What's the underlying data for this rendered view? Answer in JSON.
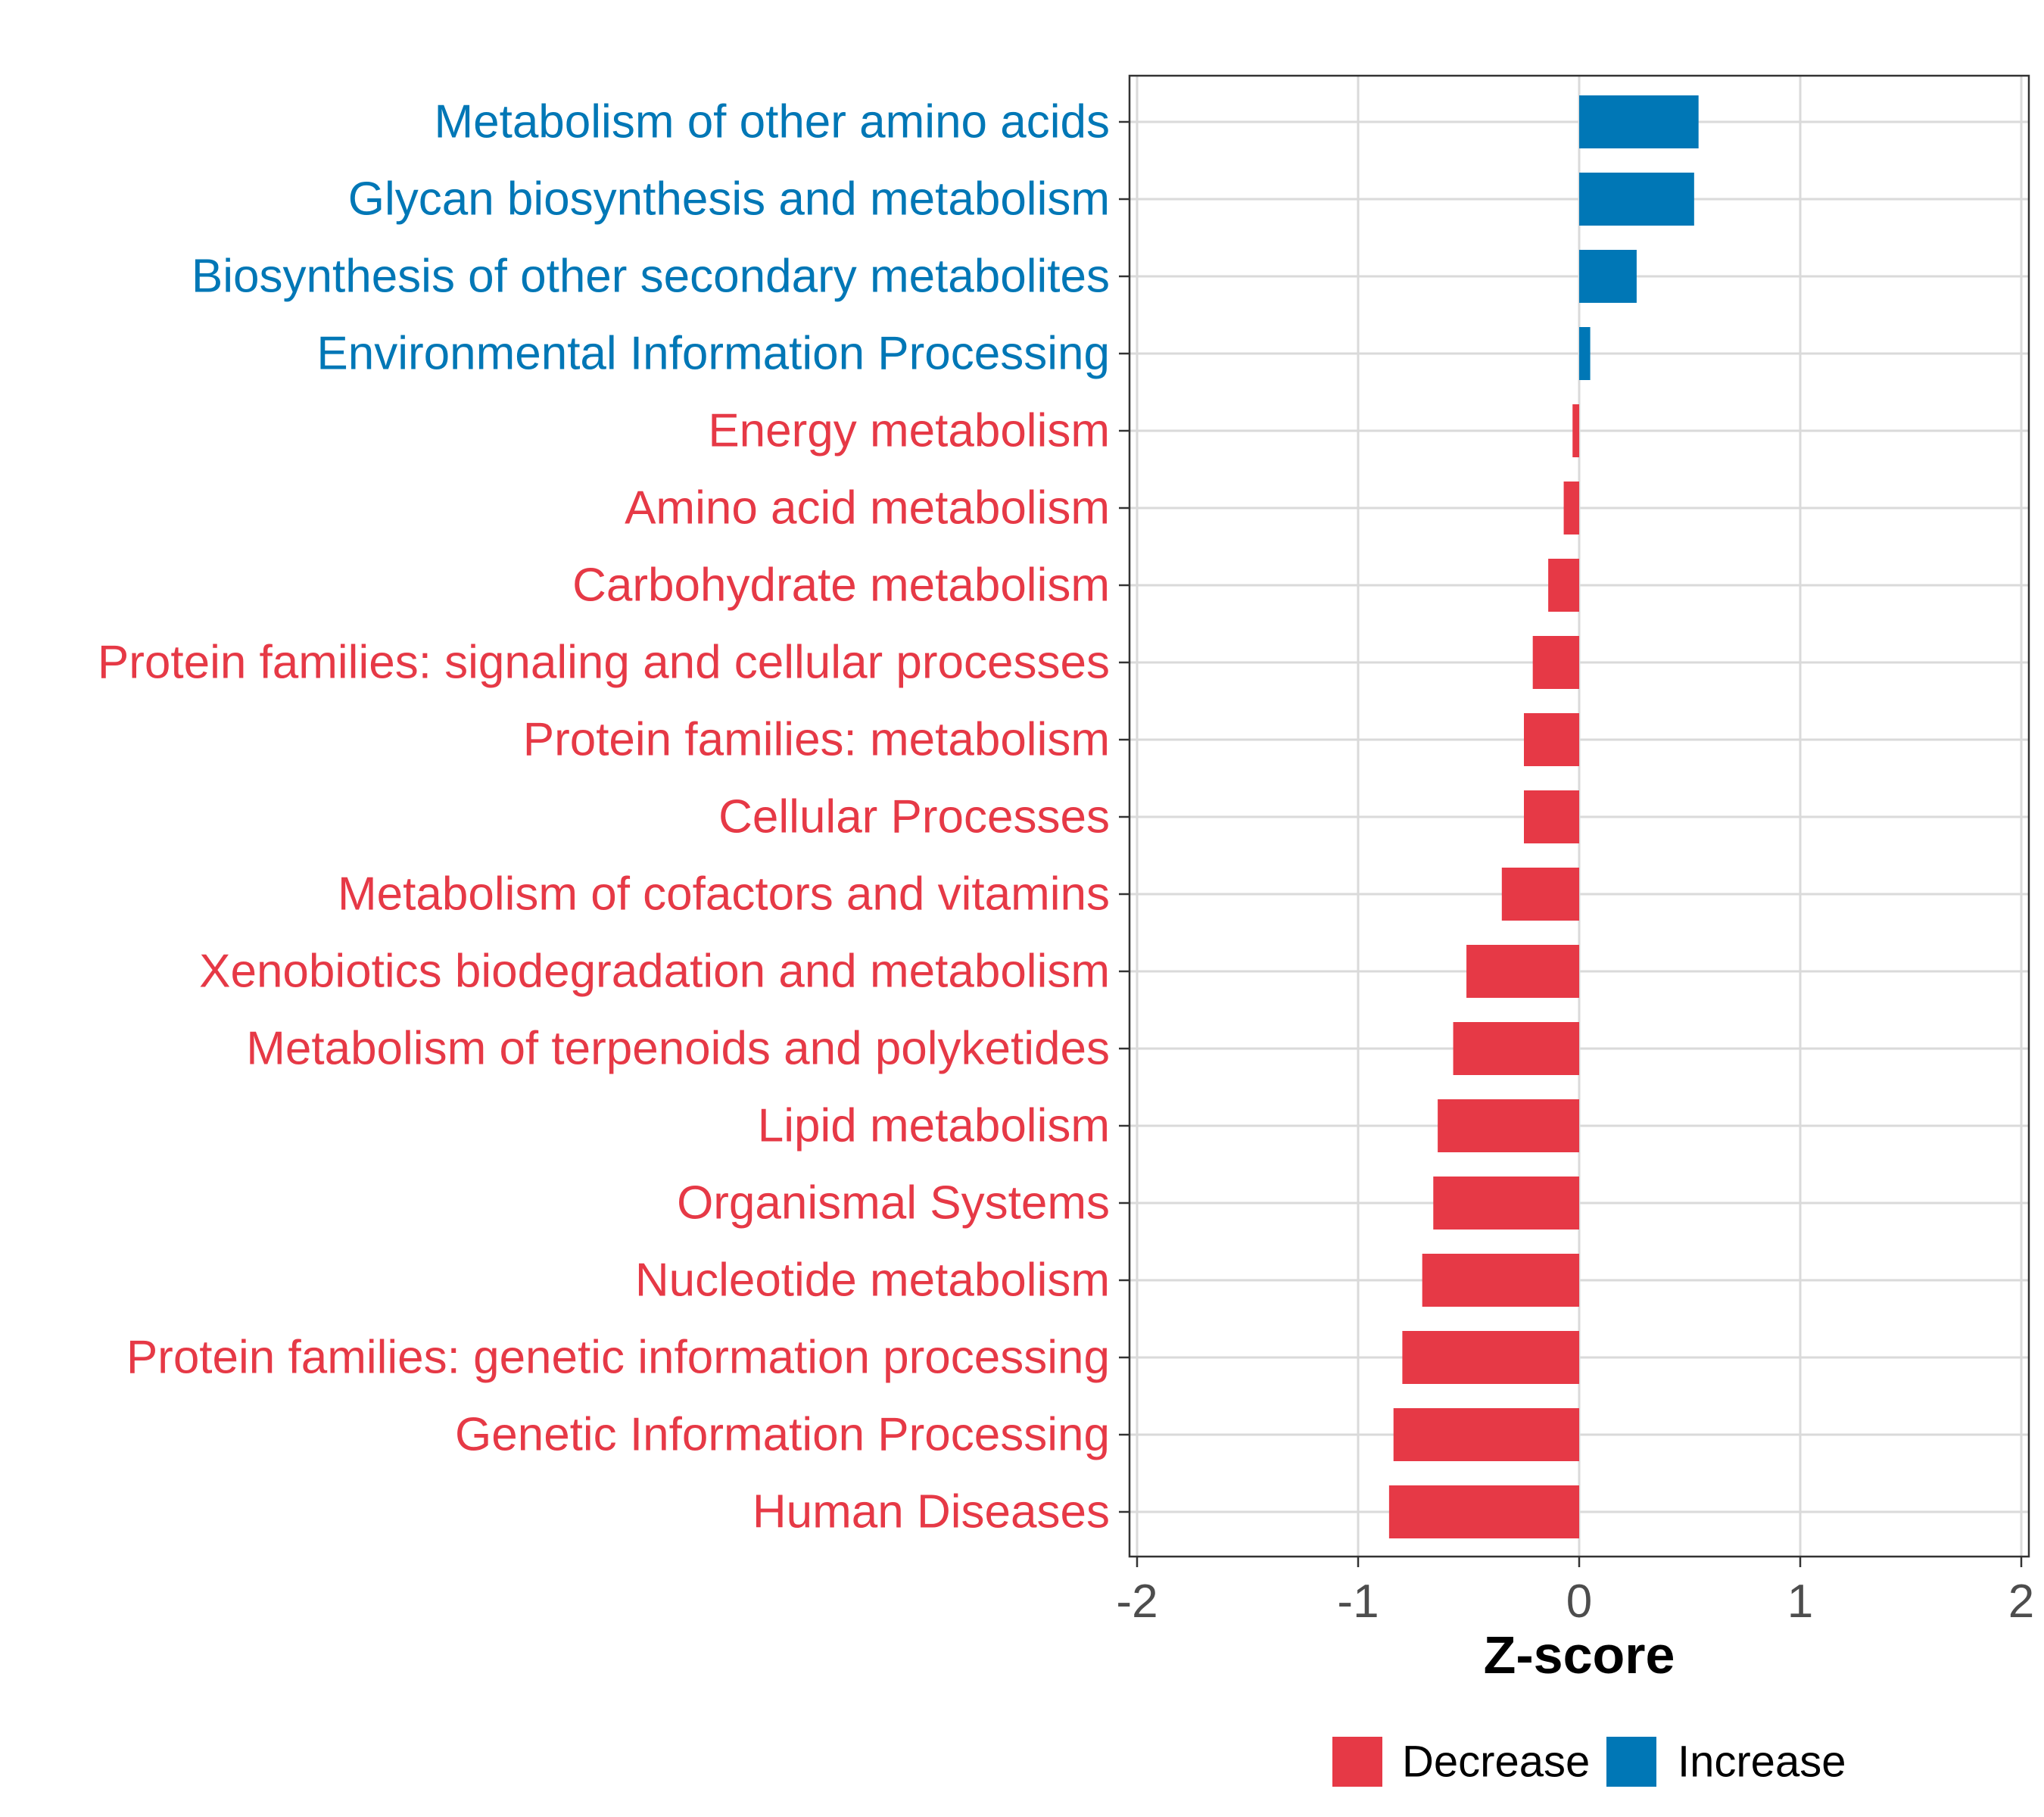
{
  "chart_data": {
    "type": "bar",
    "orientation": "horizontal",
    "xlabel": "Z-score",
    "xlim": [
      -2,
      2
    ],
    "xticks": [
      -2,
      -1,
      0,
      1,
      2
    ],
    "xtick_labels": [
      "-2",
      "-1",
      "0",
      "1",
      "2"
    ],
    "grid": true,
    "legend_position": "bottom",
    "colors": {
      "Decrease": "#E63946",
      "Increase": "#0077B6"
    },
    "legend": [
      {
        "label": "Decrease",
        "color": "#E63946"
      },
      {
        "label": "Increase",
        "color": "#0077B6"
      }
    ],
    "categories": [
      "Metabolism of other amino acids",
      "Glycan biosynthesis and metabolism",
      "Biosynthesis of other secondary metabolites",
      "Environmental Information Processing",
      "Energy metabolism",
      "Amino acid metabolism",
      "Carbohydrate metabolism",
      "Protein families: signaling and cellular processes",
      "Protein families: metabolism",
      "Cellular Processes",
      "Metabolism of cofactors and vitamins",
      "Xenobiotics biodegradation and metabolism",
      "Metabolism of terpenoids and polyketides",
      "Lipid metabolism",
      "Organismal Systems",
      "Nucleotide metabolism",
      "Protein families: genetic information processing",
      "Genetic Information Processing",
      "Human Diseases"
    ],
    "values": [
      0.54,
      0.52,
      0.26,
      0.05,
      -0.03,
      -0.07,
      -0.14,
      -0.21,
      -0.25,
      -0.25,
      -0.35,
      -0.51,
      -0.57,
      -0.64,
      -0.66,
      -0.71,
      -0.8,
      -0.84,
      -0.86
    ],
    "groups": [
      "Increase",
      "Increase",
      "Increase",
      "Increase",
      "Decrease",
      "Decrease",
      "Decrease",
      "Decrease",
      "Decrease",
      "Decrease",
      "Decrease",
      "Decrease",
      "Decrease",
      "Decrease",
      "Decrease",
      "Decrease",
      "Decrease",
      "Decrease",
      "Decrease"
    ]
  }
}
